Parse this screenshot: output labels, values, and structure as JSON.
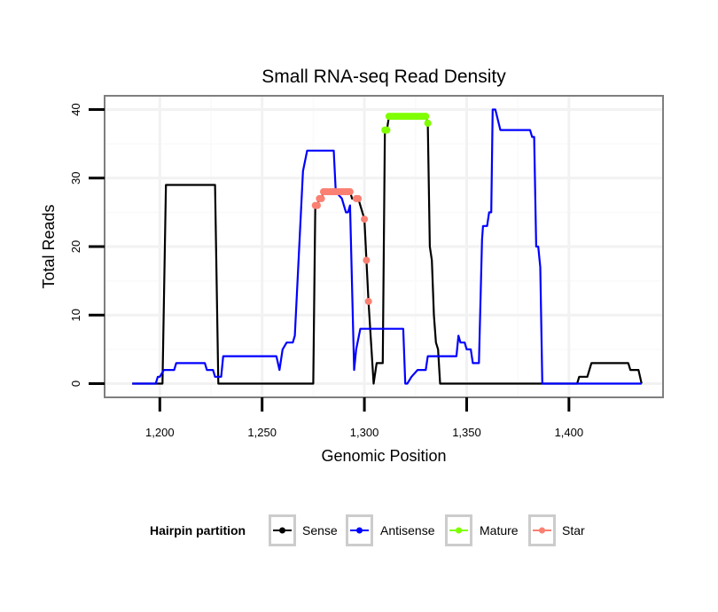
{
  "chart_data": {
    "type": "line",
    "title": "Small RNA-seq Read Density",
    "xlabel": "Genomic Position",
    "ylabel": "Total Reads",
    "xlim": [
      1173,
      1446
    ],
    "ylim": [
      -2,
      42
    ],
    "xticks": [
      1200,
      1250,
      1300,
      1350,
      1400
    ],
    "xtick_labels": [
      "1,200",
      "1,250",
      "1,300",
      "1,350",
      "1,400"
    ],
    "yticks": [
      0,
      10,
      20,
      30,
      40
    ],
    "ytick_labels": [
      "0",
      "10",
      "20",
      "30",
      "40"
    ],
    "grid": true,
    "legend": {
      "title": "Hairpin partition",
      "placement": "bottom",
      "entries": [
        "Sense",
        "Antisense",
        "Mature",
        "Star"
      ]
    },
    "series": [
      {
        "name": "Sense",
        "color": "#000000",
        "kind": "line",
        "x": [
          1186.5,
          1201.3,
          1203,
          1227,
          1228.6,
          1275,
          1276,
          1277,
          1278,
          1279,
          1280,
          1293,
          1294,
          1297,
          1300,
          1301,
          1302,
          1304.5,
          1306,
          1309,
          1310,
          1311,
          1312,
          1330,
          1331,
          1332,
          1333,
          1334,
          1335,
          1336,
          1337,
          1404,
          1405,
          1409,
          1411,
          1429,
          1430,
          1434,
          1435.5
        ],
        "y": [
          0,
          0,
          29,
          29,
          0,
          0,
          26,
          26,
          27,
          27,
          28,
          28,
          27,
          27,
          24,
          18,
          12,
          0,
          3,
          3,
          37,
          37,
          39,
          39,
          38,
          20,
          18,
          10,
          6,
          5,
          0,
          0,
          1,
          1,
          3,
          3,
          2,
          2,
          0
        ]
      },
      {
        "name": "Antisense",
        "color": "#0000FF",
        "kind": "line",
        "x": [
          1186.5,
          1198,
          1199,
          1200,
          1202,
          1207,
          1208,
          1222,
          1223,
          1226,
          1227,
          1230,
          1231,
          1257,
          1258.5,
          1260,
          1262,
          1265,
          1266,
          1270,
          1272,
          1285,
          1286,
          1289,
          1291,
          1292,
          1293,
          1295,
          1296,
          1298,
          1319,
          1320,
          1321,
          1323,
          1326,
          1330,
          1331,
          1345,
          1346,
          1347,
          1349,
          1350,
          1352,
          1353,
          1356,
          1357.5,
          1358,
          1360,
          1361,
          1362,
          1362.7,
          1364,
          1366.5,
          1381,
          1382,
          1383,
          1384,
          1385,
          1386,
          1387,
          1435.5
        ],
        "y": [
          0,
          0,
          1,
          1,
          2,
          2,
          3,
          3,
          2,
          2,
          1,
          1,
          4,
          4,
          2,
          5,
          6,
          6,
          7,
          31,
          34,
          34,
          28,
          27,
          25,
          25,
          26,
          2,
          5,
          8,
          8,
          0,
          0,
          1,
          2,
          2,
          4,
          4,
          7,
          6,
          6,
          5,
          5,
          3,
          3,
          21,
          23,
          23,
          25,
          25,
          40,
          40,
          37,
          37,
          36,
          36,
          20,
          20,
          17,
          0,
          0
        ]
      },
      {
        "name": "Mature",
        "color": "#7FFF00",
        "kind": "points",
        "x": [
          1310,
          1311,
          1312,
          1313,
          1314,
          1315,
          1316,
          1317,
          1318,
          1319,
          1320,
          1321,
          1322,
          1323,
          1324,
          1325,
          1326,
          1327,
          1328,
          1329,
          1330,
          1331
        ],
        "y": [
          37,
          37,
          39,
          39,
          39,
          39,
          39,
          39,
          39,
          39,
          39,
          39,
          39,
          39,
          39,
          39,
          39,
          39,
          39,
          39,
          39,
          38
        ]
      },
      {
        "name": "Star",
        "color": "#FA8072",
        "kind": "points",
        "x": [
          1276,
          1277,
          1278,
          1279,
          1280,
          1281,
          1282,
          1283,
          1284,
          1285,
          1286,
          1287,
          1288,
          1289,
          1290,
          1291,
          1292,
          1293,
          1296,
          1297,
          1300,
          1301,
          1302
        ],
        "y": [
          26,
          26,
          27,
          27,
          28,
          28,
          28,
          28,
          28,
          28,
          28,
          28,
          28,
          28,
          28,
          28,
          28,
          28,
          27,
          27,
          24,
          18,
          12
        ]
      }
    ]
  }
}
